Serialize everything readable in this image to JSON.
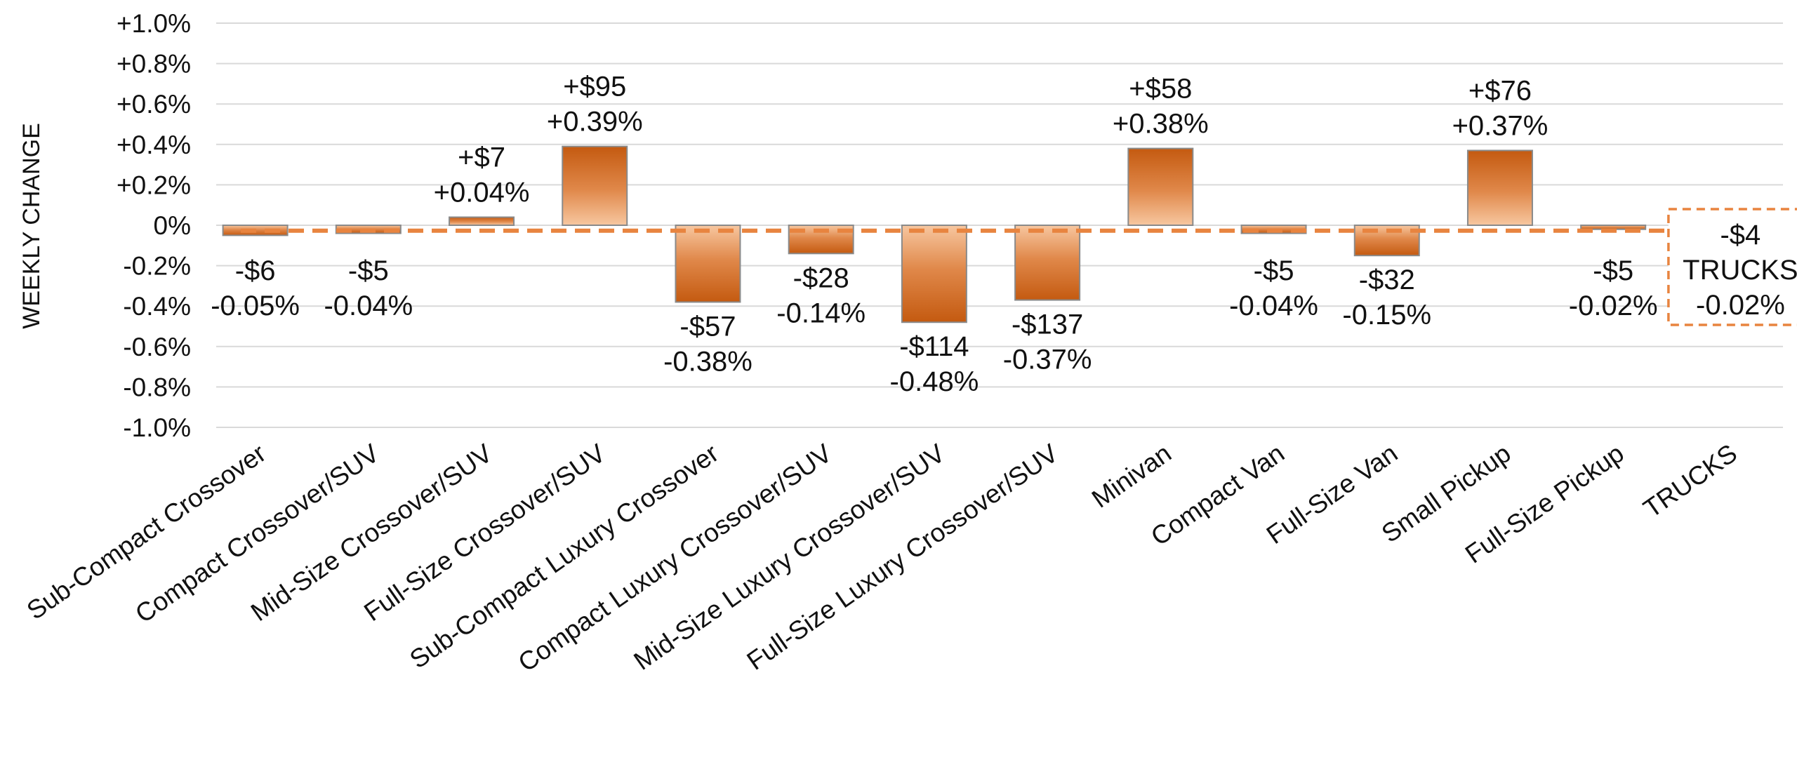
{
  "chart_data": {
    "type": "bar",
    "ylabel": "WEEKLY CHANGE",
    "xlabel": "",
    "ylim": [
      -1.0,
      1.0
    ],
    "y_ticks": [
      "+1.0%",
      "+0.8%",
      "+0.6%",
      "+0.4%",
      "+0.2%",
      "0%",
      "-0.2%",
      "-0.4%",
      "-0.6%",
      "-0.8%",
      "-1.0%"
    ],
    "y_tick_values": [
      1.0,
      0.8,
      0.6,
      0.4,
      0.2,
      0.0,
      -0.2,
      -0.4,
      -0.6,
      -0.8,
      -1.0
    ],
    "grid": true,
    "categories": [
      "Sub-Compact Crossover",
      "Compact Crossover/SUV",
      "Mid-Size Crossover/SUV",
      "Full-Size Crossover/SUV",
      "Sub-Compact Luxury Crossover",
      "Compact Luxury Crossover/SUV",
      "Mid-Size Luxury Crossover/SUV",
      "Full-Size Luxury Crossover/SUV",
      "Minivan",
      "Compact Van",
      "Full-Size Van",
      "Small Pickup",
      "Full-Size Pickup",
      "TRUCKS"
    ],
    "values": [
      -0.05,
      -0.04,
      0.04,
      0.39,
      -0.38,
      -0.14,
      -0.48,
      -0.37,
      0.38,
      -0.04,
      -0.15,
      0.37,
      -0.02,
      null
    ],
    "dollar_labels": [
      "-$6",
      "-$5",
      "+$7",
      "+$95",
      "-$57",
      "-$28",
      "-$114",
      "-$137",
      "+$58",
      "-$5",
      "-$32",
      "+$76",
      "-$5",
      ""
    ],
    "percent_labels": [
      "-0.05%",
      "-0.04%",
      "+0.04%",
      "+0.39%",
      "-0.38%",
      "-0.14%",
      "-0.48%",
      "-0.37%",
      "+0.38%",
      "-0.04%",
      "-0.15%",
      "+0.37%",
      "-0.02%",
      ""
    ],
    "reference_line": {
      "value": -0.02,
      "box_lines": [
        "-$4",
        "TRUCKS",
        "-0.02%"
      ]
    },
    "colors": {
      "bar_dark": "#c45a10",
      "bar_light": "#f7c7a0",
      "bar_stroke": "#8a8a8a",
      "reference": "#e8843f",
      "grid": "#d9d9d9",
      "text": "#111111"
    }
  }
}
